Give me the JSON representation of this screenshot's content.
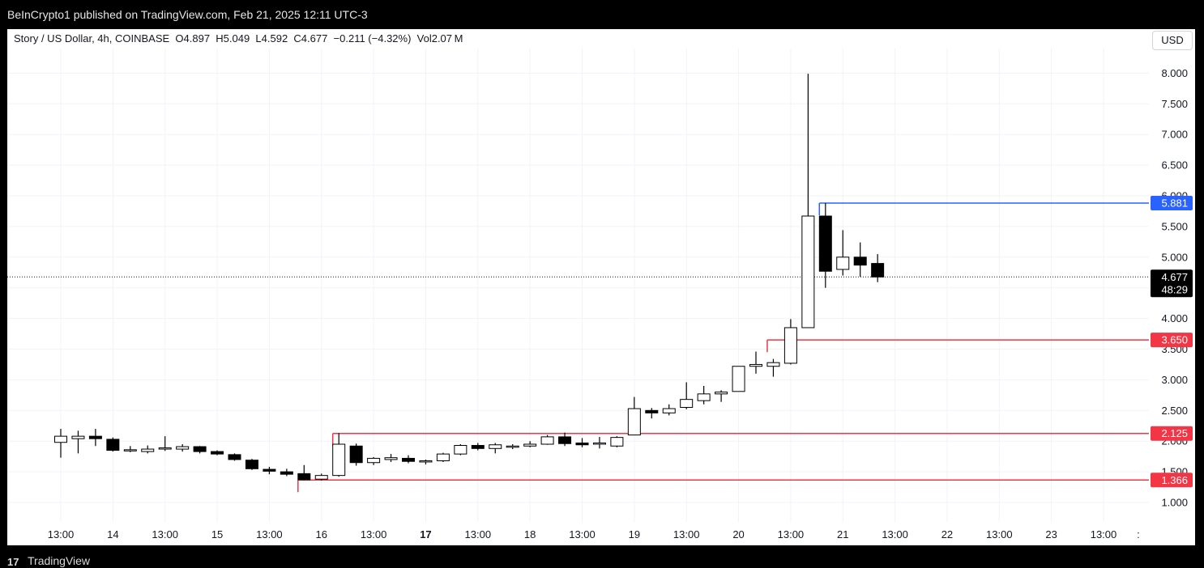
{
  "header": {
    "published_text": "BeInCrypto1 published on TradingView.com, Feb 21, 2025 12:11 UTC-3"
  },
  "symbol": {
    "info": "Story / US Dollar, 4h, COINBASE  O4.897  H5.049  L4.592  C4.677  −0.211 (−4.32%)  Vol2.07 M"
  },
  "currency": "USD",
  "footer": {
    "brand": "TradingView",
    "logo_glyph": "17"
  },
  "colors": {
    "up_body": "#ffffff",
    "down_body": "#000000",
    "wick": "#000000",
    "resistance": "#2962ff",
    "support": "#f23645",
    "grid": "#f0f3fa"
  },
  "chart_data": {
    "type": "candlestick",
    "title": "Story / US Dollar, 4h, COINBASE",
    "ylim": [
      0.8,
      8.25
    ],
    "y_ticks": [
      1.0,
      1.5,
      2.0,
      2.5,
      3.0,
      3.5,
      4.0,
      4.5,
      5.0,
      5.5,
      6.0,
      6.5,
      7.0,
      7.5,
      8.0
    ],
    "y_tick_labels": [
      "1.000",
      "1.500",
      "2.000",
      "2.500",
      "3.000",
      "3.500",
      "4.000",
      "4.500",
      "5.000",
      "5.500",
      "6.000",
      "6.500",
      "7.000",
      "7.500",
      "8.000"
    ],
    "x_ticks": [
      {
        "bar": 0,
        "label": "13:00",
        "bold": false
      },
      {
        "bar": 3,
        "label": "14",
        "bold": false
      },
      {
        "bar": 6,
        "label": "13:00",
        "bold": false
      },
      {
        "bar": 9,
        "label": "15",
        "bold": false
      },
      {
        "bar": 12,
        "label": "13:00",
        "bold": false
      },
      {
        "bar": 15,
        "label": "16",
        "bold": false
      },
      {
        "bar": 18,
        "label": "13:00",
        "bold": false
      },
      {
        "bar": 21,
        "label": "17",
        "bold": true
      },
      {
        "bar": 24,
        "label": "13:00",
        "bold": false
      },
      {
        "bar": 27,
        "label": "18",
        "bold": false
      },
      {
        "bar": 30,
        "label": "13:00",
        "bold": false
      },
      {
        "bar": 33,
        "label": "19",
        "bold": false
      },
      {
        "bar": 36,
        "label": "13:00",
        "bold": false
      },
      {
        "bar": 39,
        "label": "20",
        "bold": false
      },
      {
        "bar": 42,
        "label": "13:00",
        "bold": false
      },
      {
        "bar": 45,
        "label": "21",
        "bold": false
      },
      {
        "bar": 48,
        "label": "13:00",
        "bold": false
      },
      {
        "bar": 51,
        "label": "22",
        "bold": false
      },
      {
        "bar": 54,
        "label": "13:00",
        "bold": false
      },
      {
        "bar": 57,
        "label": "23",
        "bold": false
      },
      {
        "bar": 60,
        "label": "13:00",
        "bold": false
      },
      {
        "bar": 62,
        "label": ":",
        "bold": false
      }
    ],
    "candles": [
      {
        "o": 1.98,
        "h": 2.2,
        "l": 1.73,
        "c": 2.08
      },
      {
        "o": 2.04,
        "h": 2.17,
        "l": 1.8,
        "c": 2.08
      },
      {
        "o": 2.08,
        "h": 2.2,
        "l": 1.92,
        "c": 2.04
      },
      {
        "o": 2.03,
        "h": 2.06,
        "l": 1.83,
        "c": 1.85
      },
      {
        "o": 1.86,
        "h": 1.92,
        "l": 1.82,
        "c": 1.86
      },
      {
        "o": 1.83,
        "h": 1.93,
        "l": 1.8,
        "c": 1.87
      },
      {
        "o": 1.87,
        "h": 2.08,
        "l": 1.84,
        "c": 1.89
      },
      {
        "o": 1.87,
        "h": 1.95,
        "l": 1.83,
        "c": 1.91
      },
      {
        "o": 1.91,
        "h": 1.92,
        "l": 1.8,
        "c": 1.83
      },
      {
        "o": 1.83,
        "h": 1.85,
        "l": 1.77,
        "c": 1.79
      },
      {
        "o": 1.78,
        "h": 1.8,
        "l": 1.68,
        "c": 1.7
      },
      {
        "o": 1.69,
        "h": 1.71,
        "l": 1.53,
        "c": 1.55
      },
      {
        "o": 1.54,
        "h": 1.58,
        "l": 1.46,
        "c": 1.51
      },
      {
        "o": 1.5,
        "h": 1.55,
        "l": 1.43,
        "c": 1.46
      },
      {
        "o": 1.47,
        "h": 1.61,
        "l": 1.36,
        "c": 1.37
      },
      {
        "o": 1.38,
        "h": 1.47,
        "l": 1.36,
        "c": 1.44
      },
      {
        "o": 1.44,
        "h": 2.13,
        "l": 1.42,
        "c": 1.95
      },
      {
        "o": 1.92,
        "h": 1.96,
        "l": 1.6,
        "c": 1.65
      },
      {
        "o": 1.65,
        "h": 1.74,
        "l": 1.61,
        "c": 1.72
      },
      {
        "o": 1.7,
        "h": 1.79,
        "l": 1.66,
        "c": 1.73
      },
      {
        "o": 1.72,
        "h": 1.77,
        "l": 1.64,
        "c": 1.67
      },
      {
        "o": 1.67,
        "h": 1.7,
        "l": 1.62,
        "c": 1.68
      },
      {
        "o": 1.68,
        "h": 1.81,
        "l": 1.66,
        "c": 1.79
      },
      {
        "o": 1.79,
        "h": 1.95,
        "l": 1.77,
        "c": 1.93
      },
      {
        "o": 1.93,
        "h": 1.97,
        "l": 1.85,
        "c": 1.88
      },
      {
        "o": 1.88,
        "h": 1.97,
        "l": 1.8,
        "c": 1.94
      },
      {
        "o": 1.91,
        "h": 1.95,
        "l": 1.87,
        "c": 1.92
      },
      {
        "o": 1.92,
        "h": 2.0,
        "l": 1.9,
        "c": 1.95
      },
      {
        "o": 1.95,
        "h": 2.1,
        "l": 1.94,
        "c": 2.07
      },
      {
        "o": 2.07,
        "h": 2.14,
        "l": 1.92,
        "c": 1.96
      },
      {
        "o": 1.97,
        "h": 2.05,
        "l": 1.9,
        "c": 1.94
      },
      {
        "o": 1.96,
        "h": 2.07,
        "l": 1.88,
        "c": 1.97
      },
      {
        "o": 1.92,
        "h": 2.08,
        "l": 1.9,
        "c": 2.06
      },
      {
        "o": 2.1,
        "h": 2.72,
        "l": 2.1,
        "c": 2.53
      },
      {
        "o": 2.5,
        "h": 2.54,
        "l": 2.37,
        "c": 2.46
      },
      {
        "o": 2.46,
        "h": 2.6,
        "l": 2.42,
        "c": 2.53
      },
      {
        "o": 2.55,
        "h": 2.96,
        "l": 2.52,
        "c": 2.68
      },
      {
        "o": 2.66,
        "h": 2.9,
        "l": 2.6,
        "c": 2.77
      },
      {
        "o": 2.77,
        "h": 2.83,
        "l": 2.64,
        "c": 2.8
      },
      {
        "o": 2.81,
        "h": 3.22,
        "l": 2.81,
        "c": 3.22
      },
      {
        "o": 3.22,
        "h": 3.46,
        "l": 3.1,
        "c": 3.25
      },
      {
        "o": 3.22,
        "h": 3.34,
        "l": 3.05,
        "c": 3.28
      },
      {
        "o": 3.27,
        "h": 3.99,
        "l": 3.25,
        "c": 3.85
      },
      {
        "o": 3.85,
        "h": 7.99,
        "l": 3.85,
        "c": 5.67
      },
      {
        "o": 5.67,
        "h": 5.88,
        "l": 4.5,
        "c": 4.77
      },
      {
        "o": 4.8,
        "h": 5.44,
        "l": 4.7,
        "c": 5.0
      },
      {
        "o": 5.0,
        "h": 5.24,
        "l": 4.68,
        "c": 4.87
      },
      {
        "o": 4.897,
        "h": 5.049,
        "l": 4.592,
        "c": 4.677
      }
    ],
    "levels": [
      {
        "value": 5.881,
        "label": "5.881",
        "kind": "resistance",
        "from_bar": 44
      },
      {
        "value": 3.65,
        "label": "3.650",
        "kind": "support",
        "from_bar": 41
      },
      {
        "value": 2.125,
        "label": "2.125",
        "kind": "support",
        "from_bar": 16
      },
      {
        "value": 1.366,
        "label": "1.366",
        "kind": "support",
        "from_bar": 14
      }
    ],
    "current_price": {
      "value": 4.677,
      "label": "4.677",
      "countdown": "48:29"
    }
  }
}
